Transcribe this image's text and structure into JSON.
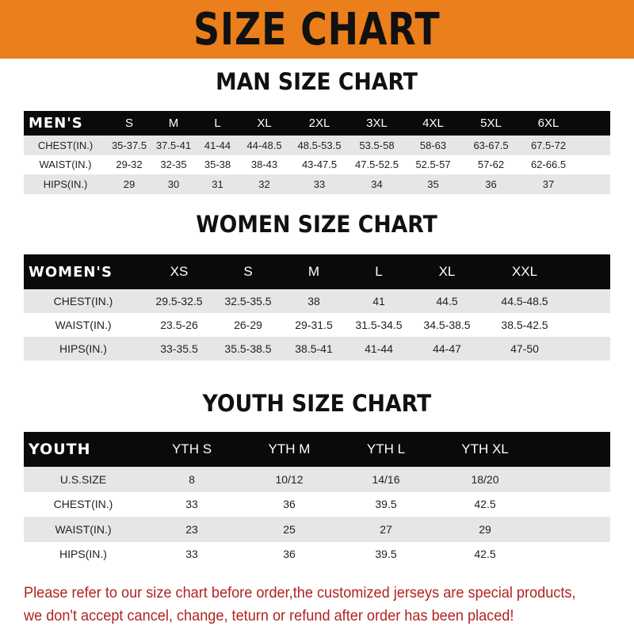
{
  "title": "SIZE CHART",
  "colors": {
    "banner": "#ea7f1b",
    "header_row": "#0a0a0a",
    "stripe": "#e6e6e6",
    "notice_text": "#b0231f"
  },
  "men": {
    "heading": "MAN SIZE CHART",
    "columns": [
      "MEN'S",
      "S",
      "M",
      "L",
      "XL",
      "2XL",
      "3XL",
      "4XL",
      "5XL",
      "6XL"
    ],
    "rows": [
      [
        "CHEST(IN.)",
        "35-37.5",
        "37.5-41",
        "41-44",
        "44-48.5",
        "48.5-53.5",
        "53.5-58",
        "58-63",
        "63-67.5",
        "67.5-72"
      ],
      [
        "WAIST(IN.)",
        "29-32",
        "32-35",
        "35-38",
        "38-43",
        "43-47.5",
        "47.5-52.5",
        "52.5-57",
        "57-62",
        "62-66.5"
      ],
      [
        "HIPS(IN.)",
        "29",
        "30",
        "31",
        "32",
        "33",
        "34",
        "35",
        "36",
        "37"
      ]
    ]
  },
  "women": {
    "heading": "WOMEN SIZE CHART",
    "columns": [
      "WOMEN'S",
      "XS",
      "S",
      "M",
      "L",
      "XL",
      "XXL"
    ],
    "rows": [
      [
        "CHEST(IN.)",
        "29.5-32.5",
        "32.5-35.5",
        "38",
        "41",
        "44.5",
        "44.5-48.5"
      ],
      [
        "WAIST(IN.)",
        "23.5-26",
        "26-29",
        "29-31.5",
        "31.5-34.5",
        "34.5-38.5",
        "38.5-42.5"
      ],
      [
        "HIPS(IN.)",
        "33-35.5",
        "35.5-38.5",
        "38.5-41",
        "41-44",
        "44-47",
        "47-50"
      ]
    ]
  },
  "youth": {
    "heading": "YOUTH SIZE CHART",
    "columns": [
      "YOUTH",
      "YTH S",
      "YTH M",
      "YTH L",
      "YTH XL"
    ],
    "rows": [
      [
        "U.S.SIZE",
        "8",
        "10/12",
        "14/16",
        "18/20"
      ],
      [
        "CHEST(IN.)",
        "33",
        "36",
        "39.5",
        "42.5"
      ],
      [
        "WAIST(IN.)",
        "23",
        "25",
        "27",
        "29"
      ],
      [
        "HIPS(IN.)",
        "33",
        "36",
        "39.5",
        "42.5"
      ]
    ]
  },
  "notice": {
    "line1": "Please refer to our size chart before order,the customized jerseys are special products,",
    "line2": "we don't accept cancel, change, teturn or refund after order has been placed!"
  }
}
